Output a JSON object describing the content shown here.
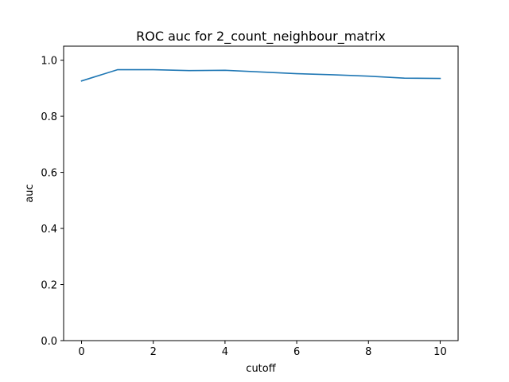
{
  "chart_data": {
    "type": "line",
    "title": "ROC auc for 2_count_neighbour_matrix",
    "xlabel": "cutoff",
    "ylabel": "auc",
    "xlim": [
      -0.5,
      10.5
    ],
    "ylim": [
      0.0,
      1.05
    ],
    "xticks": [
      0,
      2,
      4,
      6,
      8,
      10
    ],
    "yticks": [
      0.0,
      0.2,
      0.4,
      0.6,
      0.8,
      1.0
    ],
    "xtick_labels": [
      "0",
      "2",
      "4",
      "6",
      "8",
      "10"
    ],
    "ytick_labels": [
      "0.0",
      "0.2",
      "0.4",
      "0.6",
      "0.8",
      "1.0"
    ],
    "grid": false,
    "series": [
      {
        "color": "#1f77b4",
        "x": [
          0,
          1,
          2,
          3,
          4,
          5,
          6,
          7,
          8,
          9,
          10
        ],
        "y": [
          0.926,
          0.966,
          0.966,
          0.963,
          0.964,
          0.958,
          0.952,
          0.948,
          0.943,
          0.936,
          0.935
        ]
      }
    ]
  }
}
